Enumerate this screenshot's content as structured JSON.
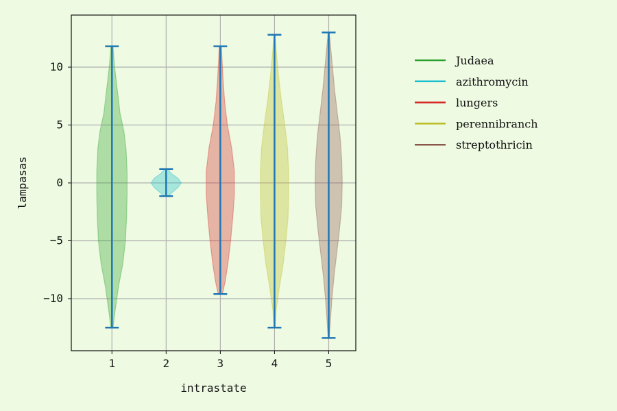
{
  "chart_data": {
    "type": "violin",
    "xlabel": "intrastate",
    "ylabel": "lampasas",
    "categories": [
      "1",
      "2",
      "3",
      "4",
      "5"
    ],
    "xlim": [
      0.25,
      5.5
    ],
    "ylim": [
      -14.5,
      14.5
    ],
    "yticks": [
      -10,
      -5,
      0,
      5,
      10
    ],
    "yticks_labels": [
      "−10",
      "−5",
      "0",
      "5",
      "10"
    ],
    "grid": true,
    "legend_position": "right",
    "series": [
      {
        "name": "Judaea",
        "x": 1,
        "color": "#2ca02c",
        "min": -12.5,
        "max": 11.8,
        "profile": [
          [
            -12.5,
            0.02
          ],
          [
            -11,
            0.06
          ],
          [
            -9,
            0.12
          ],
          [
            -7,
            0.2
          ],
          [
            -5,
            0.25
          ],
          [
            -3,
            0.27
          ],
          [
            -1,
            0.28
          ],
          [
            1,
            0.28
          ],
          [
            3,
            0.26
          ],
          [
            4.5,
            0.22
          ],
          [
            6,
            0.15
          ],
          [
            8,
            0.1
          ],
          [
            10,
            0.05
          ],
          [
            11.8,
            0.02
          ]
        ]
      },
      {
        "name": "azithromycin",
        "x": 2,
        "color": "#17becf",
        "min": -1.15,
        "max": 1.2,
        "profile": [
          [
            -1.15,
            0.04
          ],
          [
            -0.8,
            0.12
          ],
          [
            -0.4,
            0.22
          ],
          [
            0,
            0.28
          ],
          [
            0.4,
            0.22
          ],
          [
            0.8,
            0.1
          ],
          [
            1.2,
            0.03
          ]
        ]
      },
      {
        "name": "lungers",
        "x": 3,
        "color": "#d62728",
        "min": -9.6,
        "max": 11.8,
        "profile": [
          [
            -9.6,
            0.04
          ],
          [
            -8.5,
            0.09
          ],
          [
            -7,
            0.14
          ],
          [
            -5,
            0.19
          ],
          [
            -3,
            0.23
          ],
          [
            -1,
            0.26
          ],
          [
            1,
            0.26
          ],
          [
            3,
            0.21
          ],
          [
            5,
            0.13
          ],
          [
            7,
            0.08
          ],
          [
            9,
            0.05
          ],
          [
            11.8,
            0.02
          ]
        ]
      },
      {
        "name": "perennibranch",
        "x": 4,
        "color": "#bcbd22",
        "min": -12.5,
        "max": 12.8,
        "profile": [
          [
            -12.5,
            0.01
          ],
          [
            -11,
            0.03
          ],
          [
            -9,
            0.09
          ],
          [
            -7,
            0.16
          ],
          [
            -5,
            0.21
          ],
          [
            -3,
            0.25
          ],
          [
            -1,
            0.26
          ],
          [
            1,
            0.26
          ],
          [
            3,
            0.24
          ],
          [
            5,
            0.19
          ],
          [
            7,
            0.13
          ],
          [
            9,
            0.08
          ],
          [
            11,
            0.04
          ],
          [
            12.8,
            0.01
          ]
        ]
      },
      {
        "name": "streptothricin",
        "x": 5,
        "color": "#8c564b",
        "min": -13.4,
        "max": 13.0,
        "profile": [
          [
            -13.4,
            0.01
          ],
          [
            -12,
            0.03
          ],
          [
            -10,
            0.06
          ],
          [
            -8,
            0.1
          ],
          [
            -6,
            0.15
          ],
          [
            -4,
            0.2
          ],
          [
            -2,
            0.24
          ],
          [
            0,
            0.25
          ],
          [
            2,
            0.24
          ],
          [
            4,
            0.21
          ],
          [
            6,
            0.16
          ],
          [
            8,
            0.11
          ],
          [
            10,
            0.07
          ],
          [
            12,
            0.03
          ],
          [
            13,
            0.01
          ]
        ]
      }
    ]
  }
}
